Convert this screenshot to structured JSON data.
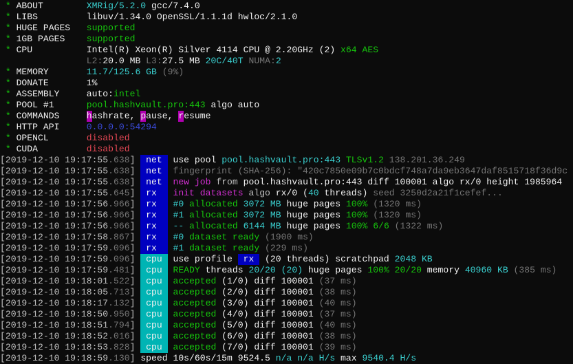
{
  "palette": {
    "text": "#c0c0c0",
    "bright": "#f2f2f2",
    "green": "#16c60c",
    "cyan": "#3ad0d0",
    "dim": "#767676",
    "magenta": "#d22fd2",
    "red": "#e74856",
    "blue": "#3b4bdb",
    "net_badge": "#0000c0",
    "cpu_badge": "#00b4b4"
  },
  "lines": [
    {
      "k": "info",
      "segs": [
        {
          "t": " * ",
          "c": "g"
        },
        {
          "t": "ABOUT        ",
          "c": "W"
        },
        {
          "t": "XMRig/5.2.0",
          "c": "c"
        },
        {
          "t": " gcc/7.4.0",
          "c": "W"
        }
      ]
    },
    {
      "k": "info",
      "segs": [
        {
          "t": " * ",
          "c": "g"
        },
        {
          "t": "LIBS         ",
          "c": "W"
        },
        {
          "t": "libuv/1.34.0 OpenSSL/1.1.1d hwloc/2.1.0",
          "c": "W"
        }
      ]
    },
    {
      "k": "info",
      "segs": [
        {
          "t": " * ",
          "c": "g"
        },
        {
          "t": "HUGE PAGES   ",
          "c": "W"
        },
        {
          "t": "supported",
          "c": "g"
        }
      ]
    },
    {
      "k": "info",
      "segs": [
        {
          "t": " * ",
          "c": "g"
        },
        {
          "t": "1GB PAGES    ",
          "c": "W"
        },
        {
          "t": "supported",
          "c": "g"
        }
      ]
    },
    {
      "k": "info",
      "segs": [
        {
          "t": " * ",
          "c": "g"
        },
        {
          "t": "CPU          ",
          "c": "W"
        },
        {
          "t": "Intel(R) Xeon(R) Silver 4114 CPU @ 2.20GHz (2) ",
          "c": "W"
        },
        {
          "t": "x64 AES",
          "c": "g"
        }
      ]
    },
    {
      "k": "info",
      "segs": [
        {
          "t": "                ",
          "c": "w"
        },
        {
          "t": "L2:",
          "c": "d"
        },
        {
          "t": "20.0 MB",
          "c": "W"
        },
        {
          "t": " L3:",
          "c": "d"
        },
        {
          "t": "27.5 MB",
          "c": "W"
        },
        {
          "t": " 20C/40T",
          "c": "c"
        },
        {
          "t": " NUMA:",
          "c": "d"
        },
        {
          "t": "2",
          "c": "c"
        }
      ]
    },
    {
      "k": "info",
      "segs": [
        {
          "t": " * ",
          "c": "g"
        },
        {
          "t": "MEMORY       ",
          "c": "W"
        },
        {
          "t": "11.7/125.6 GB",
          "c": "c"
        },
        {
          "t": " (9%)",
          "c": "d"
        }
      ]
    },
    {
      "k": "info",
      "segs": [
        {
          "t": " * ",
          "c": "g"
        },
        {
          "t": "DONATE       ",
          "c": "W"
        },
        {
          "t": "1%",
          "c": "W"
        }
      ]
    },
    {
      "k": "info",
      "segs": [
        {
          "t": " * ",
          "c": "g"
        },
        {
          "t": "ASSEMBLY     ",
          "c": "W"
        },
        {
          "t": "auto:",
          "c": "W"
        },
        {
          "t": "intel",
          "c": "g"
        }
      ]
    },
    {
      "k": "info",
      "segs": [
        {
          "t": " * ",
          "c": "g"
        },
        {
          "t": "POOL #1      ",
          "c": "W"
        },
        {
          "t": "pool.hashvault.pro:443",
          "c": "g"
        },
        {
          "t": " algo auto",
          "c": "W"
        }
      ]
    },
    {
      "k": "info",
      "segs": [
        {
          "t": " * ",
          "c": "g"
        },
        {
          "t": "COMMANDS     ",
          "c": "W"
        },
        {
          "t": "h",
          "c": "key"
        },
        {
          "t": "ashrate, ",
          "c": "W"
        },
        {
          "t": "p",
          "c": "key"
        },
        {
          "t": "ause, ",
          "c": "W"
        },
        {
          "t": "r",
          "c": "key"
        },
        {
          "t": "esume",
          "c": "W"
        }
      ]
    },
    {
      "k": "info",
      "segs": [
        {
          "t": " * ",
          "c": "g"
        },
        {
          "t": "HTTP API     ",
          "c": "W"
        },
        {
          "t": "0.0.0.0:54294",
          "c": "b"
        }
      ]
    },
    {
      "k": "info",
      "segs": [
        {
          "t": " * ",
          "c": "g"
        },
        {
          "t": "OPENCL       ",
          "c": "W"
        },
        {
          "t": "disabled",
          "c": "r"
        }
      ]
    },
    {
      "k": "info",
      "segs": [
        {
          "t": " * ",
          "c": "g"
        },
        {
          "t": "CUDA         ",
          "c": "W"
        },
        {
          "t": "disabled",
          "c": "r"
        }
      ]
    },
    {
      "k": "log",
      "segs": [
        {
          "t": "[2019-12-10 19:17:55",
          "c": "w"
        },
        {
          "t": ".638",
          "c": "d"
        },
        {
          "t": "] ",
          "c": "w"
        },
        {
          "t": " net ",
          "c": "net"
        },
        {
          "t": " use pool ",
          "c": "W"
        },
        {
          "t": "pool.hashvault.pro:443",
          "c": "c"
        },
        {
          "t": " TLSv1.2",
          "c": "g"
        },
        {
          "t": " 138.201.36.249",
          "c": "d"
        }
      ]
    },
    {
      "k": "log",
      "segs": [
        {
          "t": "[2019-12-10 19:17:55",
          "c": "w"
        },
        {
          "t": ".638",
          "c": "d"
        },
        {
          "t": "] ",
          "c": "w"
        },
        {
          "t": " net ",
          "c": "net"
        },
        {
          "t": " fingerprint (SHA-256): \"420c7850e09b7c0bdcf748a7da9eb3647daf8515718f36d9c",
          "c": "d"
        }
      ]
    },
    {
      "k": "log",
      "segs": [
        {
          "t": "[2019-12-10 19:17:55",
          "c": "w"
        },
        {
          "t": ".638",
          "c": "d"
        },
        {
          "t": "] ",
          "c": "w"
        },
        {
          "t": " net ",
          "c": "net"
        },
        {
          "t": " new job",
          "c": "m"
        },
        {
          "t": " from ",
          "c": "w"
        },
        {
          "t": "pool.hashvault.pro:443 diff 100001 algo rx/0 height 1985964",
          "c": "W"
        }
      ]
    },
    {
      "k": "log",
      "segs": [
        {
          "t": "[2019-12-10 19:17:55",
          "c": "w"
        },
        {
          "t": ".645",
          "c": "d"
        },
        {
          "t": "] ",
          "c": "w"
        },
        {
          "t": " rx  ",
          "c": "rx"
        },
        {
          "t": " init datasets",
          "c": "m"
        },
        {
          "t": " algo ",
          "c": "w"
        },
        {
          "t": "rx/0",
          "c": "W"
        },
        {
          "t": " (",
          "c": "W"
        },
        {
          "t": "40",
          "c": "c"
        },
        {
          "t": " threads)",
          "c": "W"
        },
        {
          "t": " seed 3250d2a21f1cefef...",
          "c": "d"
        }
      ]
    },
    {
      "k": "log",
      "segs": [
        {
          "t": "[2019-12-10 19:17:56",
          "c": "w"
        },
        {
          "t": ".966",
          "c": "d"
        },
        {
          "t": "] ",
          "c": "w"
        },
        {
          "t": " rx  ",
          "c": "rx"
        },
        {
          "t": " #0",
          "c": "c"
        },
        {
          "t": " allocated",
          "c": "g"
        },
        {
          "t": " 3072 MB",
          "c": "c"
        },
        {
          "t": " huge pages",
          "c": "W"
        },
        {
          "t": " 100%",
          "c": "g"
        },
        {
          "t": " (1320 ms)",
          "c": "d"
        }
      ]
    },
    {
      "k": "log",
      "segs": [
        {
          "t": "[2019-12-10 19:17:56",
          "c": "w"
        },
        {
          "t": ".966",
          "c": "d"
        },
        {
          "t": "] ",
          "c": "w"
        },
        {
          "t": " rx  ",
          "c": "rx"
        },
        {
          "t": " #1",
          "c": "c"
        },
        {
          "t": " allocated",
          "c": "g"
        },
        {
          "t": " 3072 MB",
          "c": "c"
        },
        {
          "t": " huge pages",
          "c": "W"
        },
        {
          "t": " 100%",
          "c": "g"
        },
        {
          "t": " (1320 ms)",
          "c": "d"
        }
      ]
    },
    {
      "k": "log",
      "segs": [
        {
          "t": "[2019-12-10 19:17:56",
          "c": "w"
        },
        {
          "t": ".966",
          "c": "d"
        },
        {
          "t": "] ",
          "c": "w"
        },
        {
          "t": " rx  ",
          "c": "rx"
        },
        {
          "t": " --",
          "c": "c"
        },
        {
          "t": " allocated",
          "c": "g"
        },
        {
          "t": " 6144 MB",
          "c": "c"
        },
        {
          "t": " huge pages",
          "c": "W"
        },
        {
          "t": " 100% 6/6",
          "c": "g"
        },
        {
          "t": " (1322 ms)",
          "c": "d"
        }
      ]
    },
    {
      "k": "log",
      "segs": [
        {
          "t": "[2019-12-10 19:17:58",
          "c": "w"
        },
        {
          "t": ".867",
          "c": "d"
        },
        {
          "t": "] ",
          "c": "w"
        },
        {
          "t": " rx  ",
          "c": "rx"
        },
        {
          "t": " #0",
          "c": "c"
        },
        {
          "t": " dataset ready",
          "c": "g"
        },
        {
          "t": " (1900 ms)",
          "c": "d"
        }
      ]
    },
    {
      "k": "log",
      "segs": [
        {
          "t": "[2019-12-10 19:17:59",
          "c": "w"
        },
        {
          "t": ".096",
          "c": "d"
        },
        {
          "t": "] ",
          "c": "w"
        },
        {
          "t": " rx  ",
          "c": "rx"
        },
        {
          "t": " #1",
          "c": "c"
        },
        {
          "t": " dataset ready",
          "c": "g"
        },
        {
          "t": " (229 ms)",
          "c": "d"
        }
      ]
    },
    {
      "k": "log",
      "segs": [
        {
          "t": "[2019-12-10 19:17:59",
          "c": "w"
        },
        {
          "t": ".096",
          "c": "d"
        },
        {
          "t": "] ",
          "c": "w"
        },
        {
          "t": " cpu ",
          "c": "cpu"
        },
        {
          "t": " use profile ",
          "c": "W"
        },
        {
          "t": " rx ",
          "c": "rx"
        },
        {
          "t": " (20 threads) scratchpad ",
          "c": "W"
        },
        {
          "t": "2048 KB",
          "c": "c"
        }
      ]
    },
    {
      "k": "log",
      "segs": [
        {
          "t": "[2019-12-10 19:17:59",
          "c": "w"
        },
        {
          "t": ".481",
          "c": "d"
        },
        {
          "t": "] ",
          "c": "w"
        },
        {
          "t": " cpu ",
          "c": "cpu"
        },
        {
          "t": " READY",
          "c": "g"
        },
        {
          "t": " threads ",
          "c": "W"
        },
        {
          "t": "20/20 (20)",
          "c": "c"
        },
        {
          "t": " huge pages ",
          "c": "W"
        },
        {
          "t": "100% 20/20",
          "c": "g"
        },
        {
          "t": " memory ",
          "c": "W"
        },
        {
          "t": "40960 KB",
          "c": "c"
        },
        {
          "t": " (385 ms)",
          "c": "d"
        }
      ]
    },
    {
      "k": "log",
      "segs": [
        {
          "t": "[2019-12-10 19:18:01",
          "c": "w"
        },
        {
          "t": ".522",
          "c": "d"
        },
        {
          "t": "] ",
          "c": "w"
        },
        {
          "t": " cpu ",
          "c": "cpu"
        },
        {
          "t": " accepted",
          "c": "g"
        },
        {
          "t": " (1/0) diff 100001",
          "c": "W"
        },
        {
          "t": " (37 ms)",
          "c": "d"
        }
      ]
    },
    {
      "k": "log",
      "segs": [
        {
          "t": "[2019-12-10 19:18:05",
          "c": "w"
        },
        {
          "t": ".713",
          "c": "d"
        },
        {
          "t": "] ",
          "c": "w"
        },
        {
          "t": " cpu ",
          "c": "cpu"
        },
        {
          "t": " accepted",
          "c": "g"
        },
        {
          "t": " (2/0) diff 100001",
          "c": "W"
        },
        {
          "t": " (38 ms)",
          "c": "d"
        }
      ]
    },
    {
      "k": "log",
      "segs": [
        {
          "t": "[2019-12-10 19:18:17",
          "c": "w"
        },
        {
          "t": ".132",
          "c": "d"
        },
        {
          "t": "] ",
          "c": "w"
        },
        {
          "t": " cpu ",
          "c": "cpu"
        },
        {
          "t": " accepted",
          "c": "g"
        },
        {
          "t": " (3/0) diff 100001",
          "c": "W"
        },
        {
          "t": " (40 ms)",
          "c": "d"
        }
      ]
    },
    {
      "k": "log",
      "segs": [
        {
          "t": "[2019-12-10 19:18:50",
          "c": "w"
        },
        {
          "t": ".950",
          "c": "d"
        },
        {
          "t": "] ",
          "c": "w"
        },
        {
          "t": " cpu ",
          "c": "cpu"
        },
        {
          "t": " accepted",
          "c": "g"
        },
        {
          "t": " (4/0) diff 100001",
          "c": "W"
        },
        {
          "t": " (37 ms)",
          "c": "d"
        }
      ]
    },
    {
      "k": "log",
      "segs": [
        {
          "t": "[2019-12-10 19:18:51",
          "c": "w"
        },
        {
          "t": ".794",
          "c": "d"
        },
        {
          "t": "] ",
          "c": "w"
        },
        {
          "t": " cpu ",
          "c": "cpu"
        },
        {
          "t": " accepted",
          "c": "g"
        },
        {
          "t": " (5/0) diff 100001",
          "c": "W"
        },
        {
          "t": " (40 ms)",
          "c": "d"
        }
      ]
    },
    {
      "k": "log",
      "segs": [
        {
          "t": "[2019-12-10 19:18:52",
          "c": "w"
        },
        {
          "t": ".016",
          "c": "d"
        },
        {
          "t": "] ",
          "c": "w"
        },
        {
          "t": " cpu ",
          "c": "cpu"
        },
        {
          "t": " accepted",
          "c": "g"
        },
        {
          "t": " (6/0) diff 100001",
          "c": "W"
        },
        {
          "t": " (38 ms)",
          "c": "d"
        }
      ]
    },
    {
      "k": "log",
      "segs": [
        {
          "t": "[2019-12-10 19:18:53",
          "c": "w"
        },
        {
          "t": ".828",
          "c": "d"
        },
        {
          "t": "] ",
          "c": "w"
        },
        {
          "t": " cpu ",
          "c": "cpu"
        },
        {
          "t": " accepted",
          "c": "g"
        },
        {
          "t": " (7/0) diff 100001",
          "c": "W"
        },
        {
          "t": " (39 ms)",
          "c": "d"
        }
      ]
    },
    {
      "k": "log",
      "segs": [
        {
          "t": "[2019-12-10 19:18:59",
          "c": "w"
        },
        {
          "t": ".130",
          "c": "d"
        },
        {
          "t": "] ",
          "c": "w"
        },
        {
          "t": "speed 10s/60s/15m ",
          "c": "W"
        },
        {
          "t": "9524.5",
          "c": "W"
        },
        {
          "t": " n/a n/a H/s",
          "c": "c"
        },
        {
          "t": " max ",
          "c": "W"
        },
        {
          "t": "9540.4 H/s",
          "c": "c"
        }
      ]
    }
  ]
}
